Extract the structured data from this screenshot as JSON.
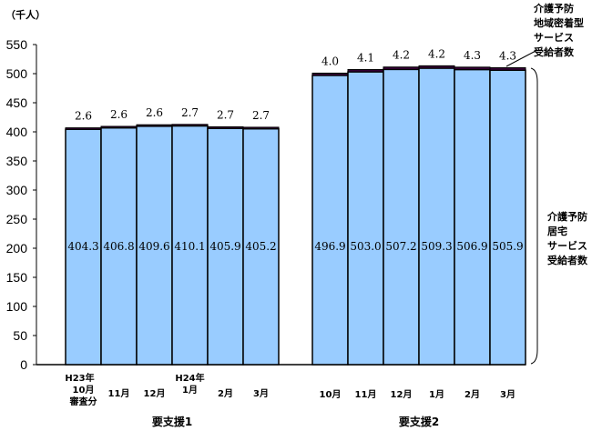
{
  "chart_data": {
    "type": "bar",
    "stacked": true,
    "ylabel": "（千人）",
    "ylim": [
      0,
      550
    ],
    "yticks": [
      0,
      50,
      100,
      150,
      200,
      250,
      300,
      350,
      400,
      450,
      500,
      550
    ],
    "grid": false,
    "groups": [
      {
        "name": "要支援1",
        "categories": [
          [
            "H23年",
            "10月",
            "審査分"
          ],
          [
            "11月"
          ],
          [
            "12月"
          ],
          [
            "H24年",
            "1月"
          ],
          [
            "2月"
          ],
          [
            "3月"
          ]
        ],
        "home_service": [
          404.3,
          406.8,
          409.6,
          410.1,
          405.9,
          405.2
        ],
        "community_service": [
          2.6,
          2.6,
          2.6,
          2.7,
          2.7,
          2.7
        ]
      },
      {
        "name": "要支援2",
        "categories": [
          [
            "10月"
          ],
          [
            "11月"
          ],
          [
            "12月"
          ],
          [
            "1月"
          ],
          [
            "2月"
          ],
          [
            "3月"
          ]
        ],
        "home_service": [
          496.9,
          503.0,
          507.2,
          509.3,
          506.9,
          505.9
        ],
        "community_service": [
          4.0,
          4.1,
          4.2,
          4.2,
          4.3,
          4.3
        ]
      }
    ],
    "series": [
      {
        "name": "介護予防居宅サービス受給者数",
        "label_lines": [
          "介護予防",
          "居宅",
          "サービス",
          "受給者数"
        ],
        "color": "#99ccff"
      },
      {
        "name": "介護予防地域密着型サービス受給者数",
        "label_lines": [
          "介護予防",
          "地域密着型",
          "サービス",
          "受給者数"
        ],
        "color": "#330033"
      }
    ]
  }
}
